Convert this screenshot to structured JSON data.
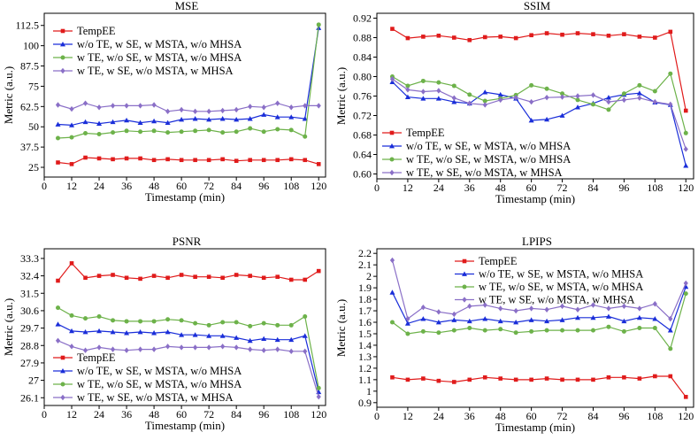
{
  "figure": {
    "series_names": [
      "TempEE",
      "w/o TE, w SE, w MSTA, w/o MHSA",
      "w TE, w/o SE, w MSTA, w/o MHSA",
      "w TE, w SE, w/o MSTA, w MHSA"
    ],
    "colors": [
      "#e01b1b",
      "#1a2ed9",
      "#6db24a",
      "#8a6fc7"
    ],
    "x_ticks": [
      "0",
      "12",
      "24",
      "36",
      "48",
      "60",
      "72",
      "84",
      "96",
      "108",
      "120"
    ]
  },
  "chart_data": [
    {
      "id": "mse",
      "type": "line",
      "title": "MSE",
      "xlabel": "Timestamp (min)",
      "ylabel": "Metric (a.u.)",
      "xlim": [
        0,
        123
      ],
      "ylim": [
        19,
        120
      ],
      "yticks": [
        "25",
        "37.5",
        "50",
        "62.5",
        "75",
        "87.5",
        "100",
        "112.5"
      ],
      "ytick_values": [
        25,
        37.5,
        50,
        62.5,
        75,
        87.5,
        100,
        112.5
      ],
      "legend_position": "top-left",
      "x": [
        6,
        12,
        18,
        24,
        30,
        36,
        42,
        48,
        54,
        60,
        66,
        72,
        78,
        84,
        90,
        96,
        102,
        108,
        114,
        120
      ],
      "series": [
        {
          "name": "TempEE",
          "values": [
            28,
            27,
            31,
            30.5,
            30,
            30.5,
            30.5,
            29.5,
            30,
            29.5,
            29.5,
            29.5,
            30,
            29,
            29.5,
            29.5,
            29.5,
            30,
            29.5,
            27
          ]
        },
        {
          "name": "w/o TE, w SE, w MSTA, w/o MHSA",
          "values": [
            51.5,
            51,
            53,
            52,
            53,
            54,
            52.5,
            53.5,
            52.5,
            54.5,
            55,
            54.5,
            55,
            54.5,
            55,
            57.5,
            56,
            56,
            55,
            111
          ]
        },
        {
          "name": "w TE, w/o SE, w MSTA, w/o MHSA",
          "values": [
            43,
            43.5,
            46,
            45.5,
            46.5,
            47.5,
            47,
            47.5,
            46.5,
            47,
            47.5,
            48,
            46.5,
            47,
            49,
            47,
            48.5,
            48,
            44,
            113
          ]
        },
        {
          "name": "w TE, w SE, w/o MSTA, w MHSA",
          "values": [
            63.5,
            61,
            64.5,
            62,
            63,
            63,
            63,
            63.5,
            59.5,
            60.5,
            59.5,
            59.5,
            60,
            60.5,
            62.5,
            62,
            64.5,
            62,
            63,
            63
          ]
        }
      ]
    },
    {
      "id": "ssim",
      "type": "line",
      "title": "SSIM",
      "xlabel": "Timestamp (min)",
      "ylabel": "Metric (a.u.)",
      "xlim": [
        0,
        123
      ],
      "ylim": [
        0.59,
        0.93
      ],
      "yticks": [
        "0.60",
        "0.64",
        "0.68",
        "0.72",
        "0.76",
        "0.80",
        "0.84",
        "0.88",
        "0.92"
      ],
      "ytick_values": [
        0.6,
        0.64,
        0.68,
        0.72,
        0.76,
        0.8,
        0.84,
        0.88,
        0.92
      ],
      "legend_position": "bottom-left",
      "x": [
        6,
        12,
        18,
        24,
        30,
        36,
        42,
        48,
        54,
        60,
        66,
        72,
        78,
        84,
        90,
        96,
        102,
        108,
        114,
        120
      ],
      "series": [
        {
          "name": "TempEE",
          "values": [
            0.898,
            0.879,
            0.882,
            0.884,
            0.88,
            0.875,
            0.881,
            0.882,
            0.879,
            0.885,
            0.889,
            0.886,
            0.889,
            0.887,
            0.884,
            0.887,
            0.882,
            0.88,
            0.892,
            0.73
          ]
        },
        {
          "name": "w/o TE, w SE, w MSTA, w/o MHSA",
          "values": [
            0.789,
            0.758,
            0.755,
            0.755,
            0.748,
            0.745,
            0.768,
            0.763,
            0.755,
            0.71,
            0.712,
            0.72,
            0.737,
            0.745,
            0.757,
            0.763,
            0.766,
            0.747,
            0.742,
            0.617
          ]
        },
        {
          "name": "w TE, w/o SE, w MSTA, w/o MHSA",
          "values": [
            0.8,
            0.781,
            0.791,
            0.788,
            0.781,
            0.763,
            0.75,
            0.755,
            0.762,
            0.782,
            0.775,
            0.765,
            0.752,
            0.743,
            0.732,
            0.765,
            0.782,
            0.77,
            0.806,
            0.684
          ]
        },
        {
          "name": "w TE, w SE, w/o MSTA, w MHSA",
          "values": [
            0.795,
            0.773,
            0.769,
            0.771,
            0.756,
            0.745,
            0.742,
            0.752,
            0.757,
            0.748,
            0.757,
            0.758,
            0.76,
            0.762,
            0.748,
            0.752,
            0.756,
            0.748,
            0.743,
            0.651
          ]
        }
      ]
    },
    {
      "id": "psnr",
      "type": "line",
      "title": "PSNR",
      "xlabel": "Timestamp (min)",
      "ylabel": "Metric (a.u.)",
      "xlim": [
        0,
        123
      ],
      "ylim": [
        25.7,
        33.8
      ],
      "yticks": [
        "26.1",
        "27",
        "27.9",
        "28.8",
        "29.7",
        "30.6",
        "31.5",
        "32.4",
        "33.3"
      ],
      "ytick_values": [
        26.1,
        27,
        27.9,
        28.8,
        29.7,
        30.6,
        31.5,
        32.4,
        33.3
      ],
      "legend_position": "bottom-left",
      "x": [
        6,
        12,
        18,
        24,
        30,
        36,
        42,
        48,
        54,
        60,
        66,
        72,
        78,
        84,
        90,
        96,
        102,
        108,
        114,
        120
      ],
      "series": [
        {
          "name": "TempEE",
          "values": [
            32.15,
            33.05,
            32.3,
            32.4,
            32.45,
            32.3,
            32.25,
            32.4,
            32.3,
            32.45,
            32.35,
            32.35,
            32.3,
            32.45,
            32.4,
            32.3,
            32.35,
            32.2,
            32.2,
            32.65
          ]
        },
        {
          "name": "w/o TE, w SE, w MSTA, w/o MHSA",
          "values": [
            29.9,
            29.55,
            29.5,
            29.55,
            29.5,
            29.45,
            29.5,
            29.45,
            29.5,
            29.35,
            29.35,
            29.3,
            29.3,
            29.2,
            29.05,
            29.15,
            29.1,
            29.1,
            29.3,
            26.4
          ]
        },
        {
          "name": "w TE, w/o SE, w MSTA, w/o MHSA",
          "values": [
            30.75,
            30.35,
            30.2,
            30.3,
            30.1,
            30.05,
            30.05,
            30.05,
            30.15,
            30.1,
            29.95,
            29.85,
            30.0,
            30.0,
            29.8,
            29.95,
            29.85,
            29.85,
            30.3,
            26.6
          ]
        },
        {
          "name": "w TE, w SE, w/o MSTA, w MHSA",
          "values": [
            29.05,
            28.75,
            28.55,
            28.7,
            28.6,
            28.55,
            28.6,
            28.6,
            28.75,
            28.7,
            28.7,
            28.7,
            28.75,
            28.7,
            28.6,
            28.55,
            28.6,
            28.5,
            28.5,
            26.15
          ]
        }
      ]
    },
    {
      "id": "lpips",
      "type": "line",
      "title": "LPIPS",
      "xlabel": "Timestamp (min)",
      "ylabel": "Metric (a.u.)",
      "xlim": [
        0,
        123
      ],
      "ylim": [
        0.86,
        2.24
      ],
      "yticks": [
        "0.9",
        "1",
        "1.1",
        "1.2",
        "1.3",
        "1.4",
        "1.5",
        "1.6",
        "1.7",
        "1.8",
        "1.9",
        "2",
        "2.1",
        "2.2"
      ],
      "ytick_values": [
        0.9,
        1.0,
        1.1,
        1.2,
        1.3,
        1.4,
        1.5,
        1.6,
        1.7,
        1.8,
        1.9,
        2.0,
        2.1,
        2.2
      ],
      "legend_position": "top-right",
      "x": [
        6,
        12,
        18,
        24,
        30,
        36,
        42,
        48,
        54,
        60,
        66,
        72,
        78,
        84,
        90,
        96,
        102,
        108,
        114,
        120
      ],
      "series": [
        {
          "name": "TempEE",
          "values": [
            1.12,
            1.1,
            1.11,
            1.09,
            1.08,
            1.1,
            1.12,
            1.11,
            1.1,
            1.1,
            1.11,
            1.1,
            1.1,
            1.1,
            1.12,
            1.12,
            1.11,
            1.13,
            1.13,
            0.95
          ]
        },
        {
          "name": "w/o TE, w SE, w MSTA, w/o MHSA",
          "values": [
            1.86,
            1.59,
            1.63,
            1.6,
            1.62,
            1.61,
            1.63,
            1.61,
            1.6,
            1.62,
            1.61,
            1.62,
            1.64,
            1.64,
            1.65,
            1.61,
            1.64,
            1.63,
            1.53,
            1.91
          ]
        },
        {
          "name": "w TE, w/o SE, w MSTA, w/o MHSA",
          "values": [
            1.6,
            1.5,
            1.52,
            1.51,
            1.53,
            1.55,
            1.53,
            1.54,
            1.51,
            1.52,
            1.53,
            1.53,
            1.53,
            1.53,
            1.56,
            1.52,
            1.55,
            1.55,
            1.37,
            1.85
          ]
        },
        {
          "name": "w TE, w SE, w/o MSTA, w MHSA",
          "values": [
            2.14,
            1.63,
            1.73,
            1.69,
            1.67,
            1.74,
            1.75,
            1.72,
            1.7,
            1.72,
            1.71,
            1.74,
            1.71,
            1.75,
            1.72,
            1.74,
            1.72,
            1.76,
            1.63,
            1.94
          ]
        }
      ]
    }
  ]
}
